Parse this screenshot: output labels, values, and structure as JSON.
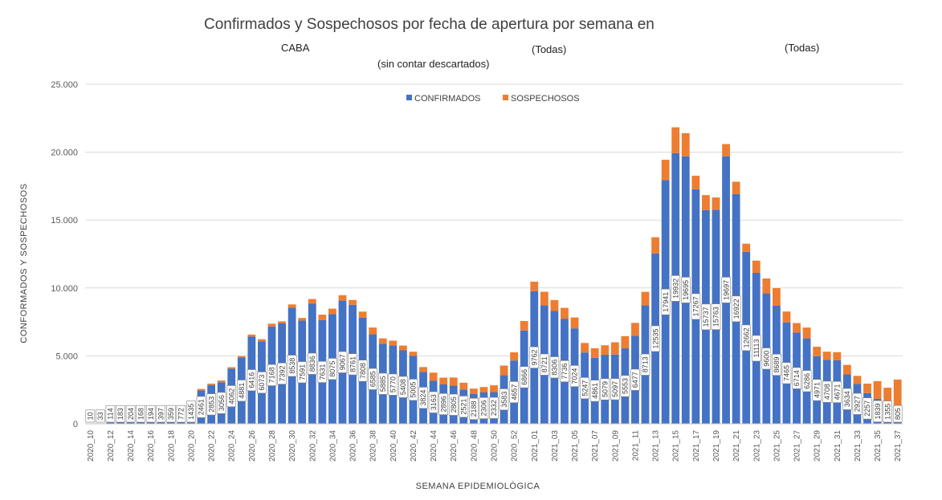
{
  "header": {
    "title": "Confirmados y Sospechosos por fecha de apertura por semana en",
    "region": "CABA",
    "subtitle": "(sin contar descartados)",
    "filter_1": "(Todas)",
    "filter_2": "(Todas)"
  },
  "colors": {
    "confirmados": "#4472C4",
    "sospechosos": "#ED7D31",
    "grid": "#D9D9D9"
  },
  "chart_data": {
    "type": "bar",
    "stacked": true,
    "title": "Confirmados y Sospechosos por fecha de apertura por semana en",
    "xlabel": "SEMANA EPIDEMIOLÓGICA",
    "ylabel": "CONFORMADOS Y SOSPECHOSOS",
    "ylim": [
      0,
      25000
    ],
    "y_ticks": [
      0,
      5000,
      10000,
      15000,
      20000,
      25000
    ],
    "y_tick_labels": [
      "0",
      "5.000",
      "10.000",
      "15.000",
      "20.000",
      "25.000"
    ],
    "legend_position": "top-center",
    "categories": [
      "2020_10",
      "2020_11",
      "2020_12",
      "2020_13",
      "2020_14",
      "2020_15",
      "2020_16",
      "2020_17",
      "2020_18",
      "2020_19",
      "2020_20",
      "2020_21",
      "2020_22",
      "2020_23",
      "2020_24",
      "2020_25",
      "2020_26",
      "2020_27",
      "2020_28",
      "2020_29",
      "2020_30",
      "2020_31",
      "2020_32",
      "2020_33",
      "2020_34",
      "2020_35",
      "2020_36",
      "2020_37",
      "2020_38",
      "2020_39",
      "2020_40",
      "2020_41",
      "2020_42",
      "2020_43",
      "2020_44",
      "2020_45",
      "2020_46",
      "2020_47",
      "2020_48",
      "2020_49",
      "2020_50",
      "2020_51",
      "2020_52",
      "2020_53",
      "2021_01",
      "2021_02",
      "2021_03",
      "2021_04",
      "2021_05",
      "2021_06",
      "2021_07",
      "2021_08",
      "2021_09",
      "2021_10",
      "2021_11",
      "2021_12",
      "2021_13",
      "2021_14",
      "2021_15",
      "2021_16",
      "2021_17",
      "2021_18",
      "2021_19",
      "2021_20",
      "2021_21",
      "2021_22",
      "2021_23",
      "2021_24",
      "2021_25",
      "2021_26",
      "2021_27",
      "2021_28",
      "2021_29",
      "2021_30",
      "2021_31",
      "2021_32",
      "2021_33",
      "2021_34",
      "2021_35",
      "2021_36",
      "2021_37"
    ],
    "x_tick_labels": [
      "2020_10",
      "2020_12",
      "2020_14",
      "2020_16",
      "2020_18",
      "2020_20",
      "2020_22",
      "2020_24",
      "2020_26",
      "2020_28",
      "2020_30",
      "2020_32",
      "2020_34",
      "2020_36",
      "2020_38",
      "2020_40",
      "2020_42",
      "2020_44",
      "2020_46",
      "2020_48",
      "2020_50",
      "2020_52",
      "2021_01",
      "2021_03",
      "2021_05",
      "2021_07",
      "2021_09",
      "2021_11",
      "2021_13",
      "2021_15",
      "2021_17",
      "2021_19",
      "2021_21",
      "2021_23",
      "2021_25",
      "2021_27",
      "2021_29",
      "2021_31",
      "2021_33",
      "2021_35",
      "2021_37"
    ],
    "series": [
      {
        "name": "CONFIRMADOS",
        "values": [
          10,
          33,
          114,
          183,
          204,
          168,
          194,
          397,
          359,
          772,
          1435,
          2461,
          2853,
          3056,
          4062,
          4881,
          6416,
          6073,
          7168,
          7392,
          8538,
          7591,
          8836,
          7631,
          8075,
          9067,
          8761,
          7808,
          6585,
          5885,
          5770,
          5408,
          5005,
          3824,
          3163,
          2896,
          2805,
          2521,
          2188,
          2306,
          2332,
          3583,
          4657,
          6866,
          9762,
          8721,
          8306,
          7736,
          7024,
          5247,
          4861,
          5079,
          5097,
          5553,
          6477,
          8713,
          12535,
          17941,
          19932,
          19695,
          17267,
          15737,
          15763,
          19697,
          16922,
          12662,
          11113,
          9600,
          8689,
          7465,
          6714,
          6286,
          4971,
          4708,
          4671,
          3634,
          2927,
          2257,
          1839,
          1355,
          805
        ]
      },
      {
        "name": "SOSPECHOSOS",
        "values": [
          0,
          0,
          0,
          0,
          0,
          0,
          0,
          0,
          0,
          0,
          80,
          100,
          100,
          130,
          100,
          100,
          150,
          150,
          200,
          150,
          250,
          200,
          350,
          400,
          400,
          400,
          350,
          450,
          500,
          400,
          350,
          350,
          300,
          350,
          600,
          500,
          600,
          500,
          400,
          400,
          500,
          700,
          600,
          700,
          700,
          1000,
          800,
          800,
          800,
          700,
          700,
          700,
          900,
          900,
          950,
          1000,
          1200,
          1500,
          1900,
          1700,
          1000,
          1100,
          900,
          900,
          900,
          600,
          900,
          1100,
          1300,
          800,
          700,
          800,
          700,
          600,
          600,
          700,
          600,
          700,
          1300,
          1300,
          2450
        ]
      }
    ],
    "data_labels": [
      10,
      33,
      114,
      183,
      204,
      168,
      194,
      397,
      359,
      772,
      1435,
      2461,
      2853,
      3056,
      4062,
      4881,
      6416,
      6073,
      7168,
      7392,
      8538,
      7591,
      8836,
      7631,
      8075,
      9067,
      8761,
      7808,
      6585,
      5885,
      5770,
      5408,
      5005,
      3824,
      3163,
      2896,
      2805,
      2521,
      2188,
      2306,
      2332,
      3583,
      4657,
      6866,
      9762,
      8721,
      8306,
      7736,
      7024,
      5247,
      4861,
      5079,
      5097,
      5553,
      6477,
      8713,
      12535,
      17941,
      19932,
      19695,
      17267,
      15737,
      15763,
      19697,
      16922,
      12662,
      11113,
      9600,
      8689,
      7465,
      6714,
      6286,
      4971,
      4708,
      4671,
      3634,
      2927,
      2257,
      1839,
      1355,
      805
    ]
  }
}
